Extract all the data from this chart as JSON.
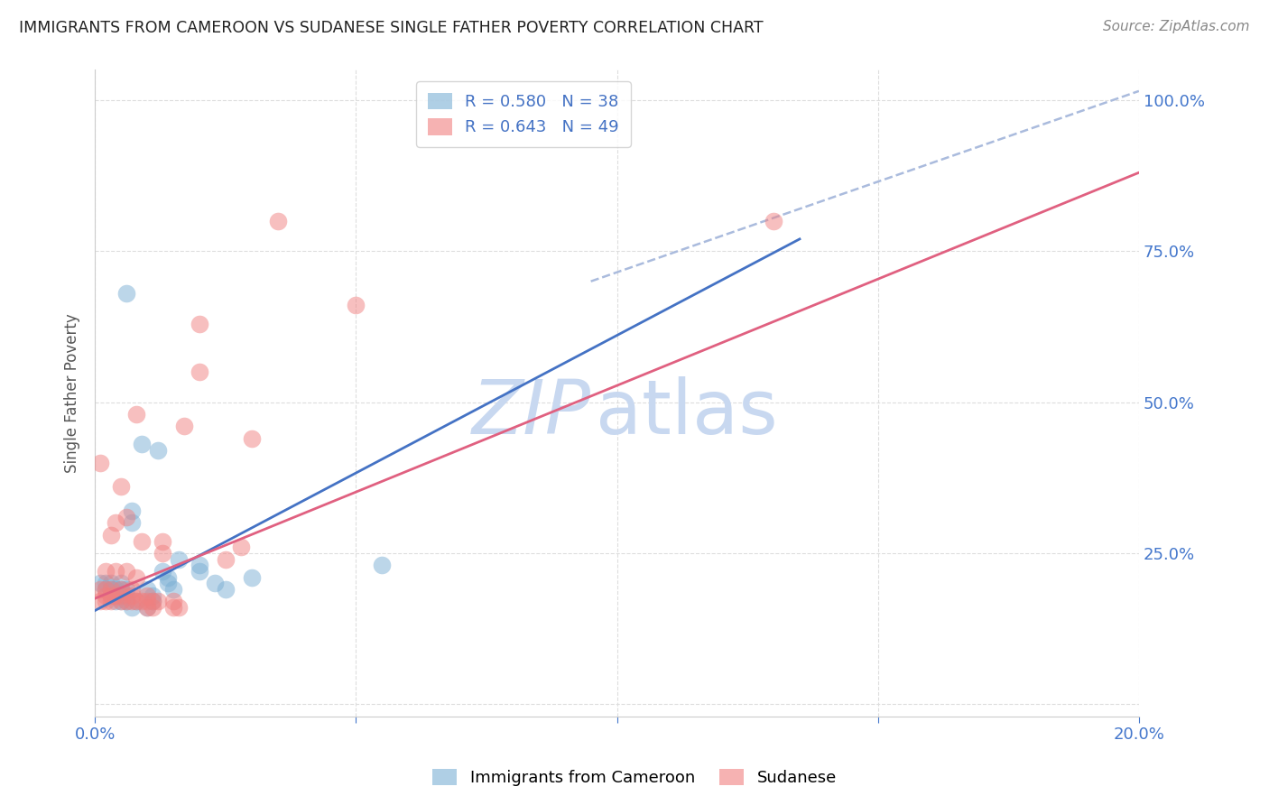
{
  "title": "IMMIGRANTS FROM CAMEROON VS SUDANESE SINGLE FATHER POVERTY CORRELATION CHART",
  "source": "Source: ZipAtlas.com",
  "ylabel": "Single Father Poverty",
  "yticks": [
    0.0,
    0.25,
    0.5,
    0.75,
    1.0
  ],
  "ytick_labels": [
    "",
    "25.0%",
    "50.0%",
    "75.0%",
    "100.0%"
  ],
  "xticks": [
    0.0,
    0.05,
    0.1,
    0.15,
    0.2
  ],
  "xtick_labels": [
    "0.0%",
    "",
    "",
    "",
    "20.0%"
  ],
  "xlim": [
    0.0,
    0.2
  ],
  "ylim": [
    -0.02,
    1.05
  ],
  "legend_blue_R": "R = 0.580",
  "legend_blue_N": "N = 38",
  "legend_pink_R": "R = 0.643",
  "legend_pink_N": "N = 49",
  "blue_color": "#7bafd4",
  "pink_color": "#f08080",
  "blue_line_color": "#4472c4",
  "pink_line_color": "#e06080",
  "dashed_line_color": "#aabbdd",
  "watermark_zip": "ZIP",
  "watermark_atlas": "atlas",
  "watermark_color": "#c8d8f0",
  "blue_scatter_x": [
    0.001,
    0.002,
    0.002,
    0.003,
    0.003,
    0.003,
    0.004,
    0.004,
    0.004,
    0.005,
    0.005,
    0.005,
    0.005,
    0.006,
    0.006,
    0.006,
    0.006,
    0.007,
    0.007,
    0.007,
    0.008,
    0.009,
    0.01,
    0.01,
    0.011,
    0.011,
    0.012,
    0.013,
    0.014,
    0.014,
    0.015,
    0.016,
    0.02,
    0.02,
    0.023,
    0.025,
    0.03,
    0.055
  ],
  "blue_scatter_y": [
    0.2,
    0.19,
    0.2,
    0.18,
    0.19,
    0.2,
    0.17,
    0.18,
    0.19,
    0.17,
    0.18,
    0.19,
    0.2,
    0.17,
    0.18,
    0.19,
    0.68,
    0.16,
    0.3,
    0.32,
    0.17,
    0.43,
    0.16,
    0.19,
    0.17,
    0.18,
    0.42,
    0.22,
    0.2,
    0.21,
    0.19,
    0.24,
    0.22,
    0.23,
    0.2,
    0.19,
    0.21,
    0.23
  ],
  "pink_scatter_x": [
    0.001,
    0.001,
    0.001,
    0.002,
    0.002,
    0.002,
    0.002,
    0.003,
    0.003,
    0.003,
    0.003,
    0.004,
    0.004,
    0.004,
    0.005,
    0.005,
    0.005,
    0.005,
    0.006,
    0.006,
    0.006,
    0.007,
    0.007,
    0.007,
    0.008,
    0.008,
    0.008,
    0.009,
    0.009,
    0.01,
    0.01,
    0.01,
    0.011,
    0.011,
    0.012,
    0.013,
    0.013,
    0.015,
    0.015,
    0.016,
    0.017,
    0.02,
    0.02,
    0.025,
    0.028,
    0.03,
    0.035,
    0.05,
    0.13
  ],
  "pink_scatter_y": [
    0.17,
    0.19,
    0.4,
    0.17,
    0.18,
    0.19,
    0.22,
    0.17,
    0.18,
    0.19,
    0.28,
    0.18,
    0.22,
    0.3,
    0.17,
    0.18,
    0.19,
    0.36,
    0.17,
    0.22,
    0.31,
    0.17,
    0.18,
    0.19,
    0.17,
    0.21,
    0.48,
    0.17,
    0.27,
    0.16,
    0.17,
    0.18,
    0.16,
    0.17,
    0.17,
    0.25,
    0.27,
    0.16,
    0.17,
    0.16,
    0.46,
    0.55,
    0.63,
    0.24,
    0.26,
    0.44,
    0.8,
    0.66,
    0.8
  ],
  "blue_line_x": [
    0.0,
    0.135
  ],
  "blue_line_y": [
    0.155,
    0.77
  ],
  "pink_line_x": [
    0.0,
    0.2
  ],
  "pink_line_y": [
    0.175,
    0.88
  ],
  "dashed_line_x": [
    0.095,
    0.2
  ],
  "dashed_line_y": [
    0.7,
    1.015
  ]
}
